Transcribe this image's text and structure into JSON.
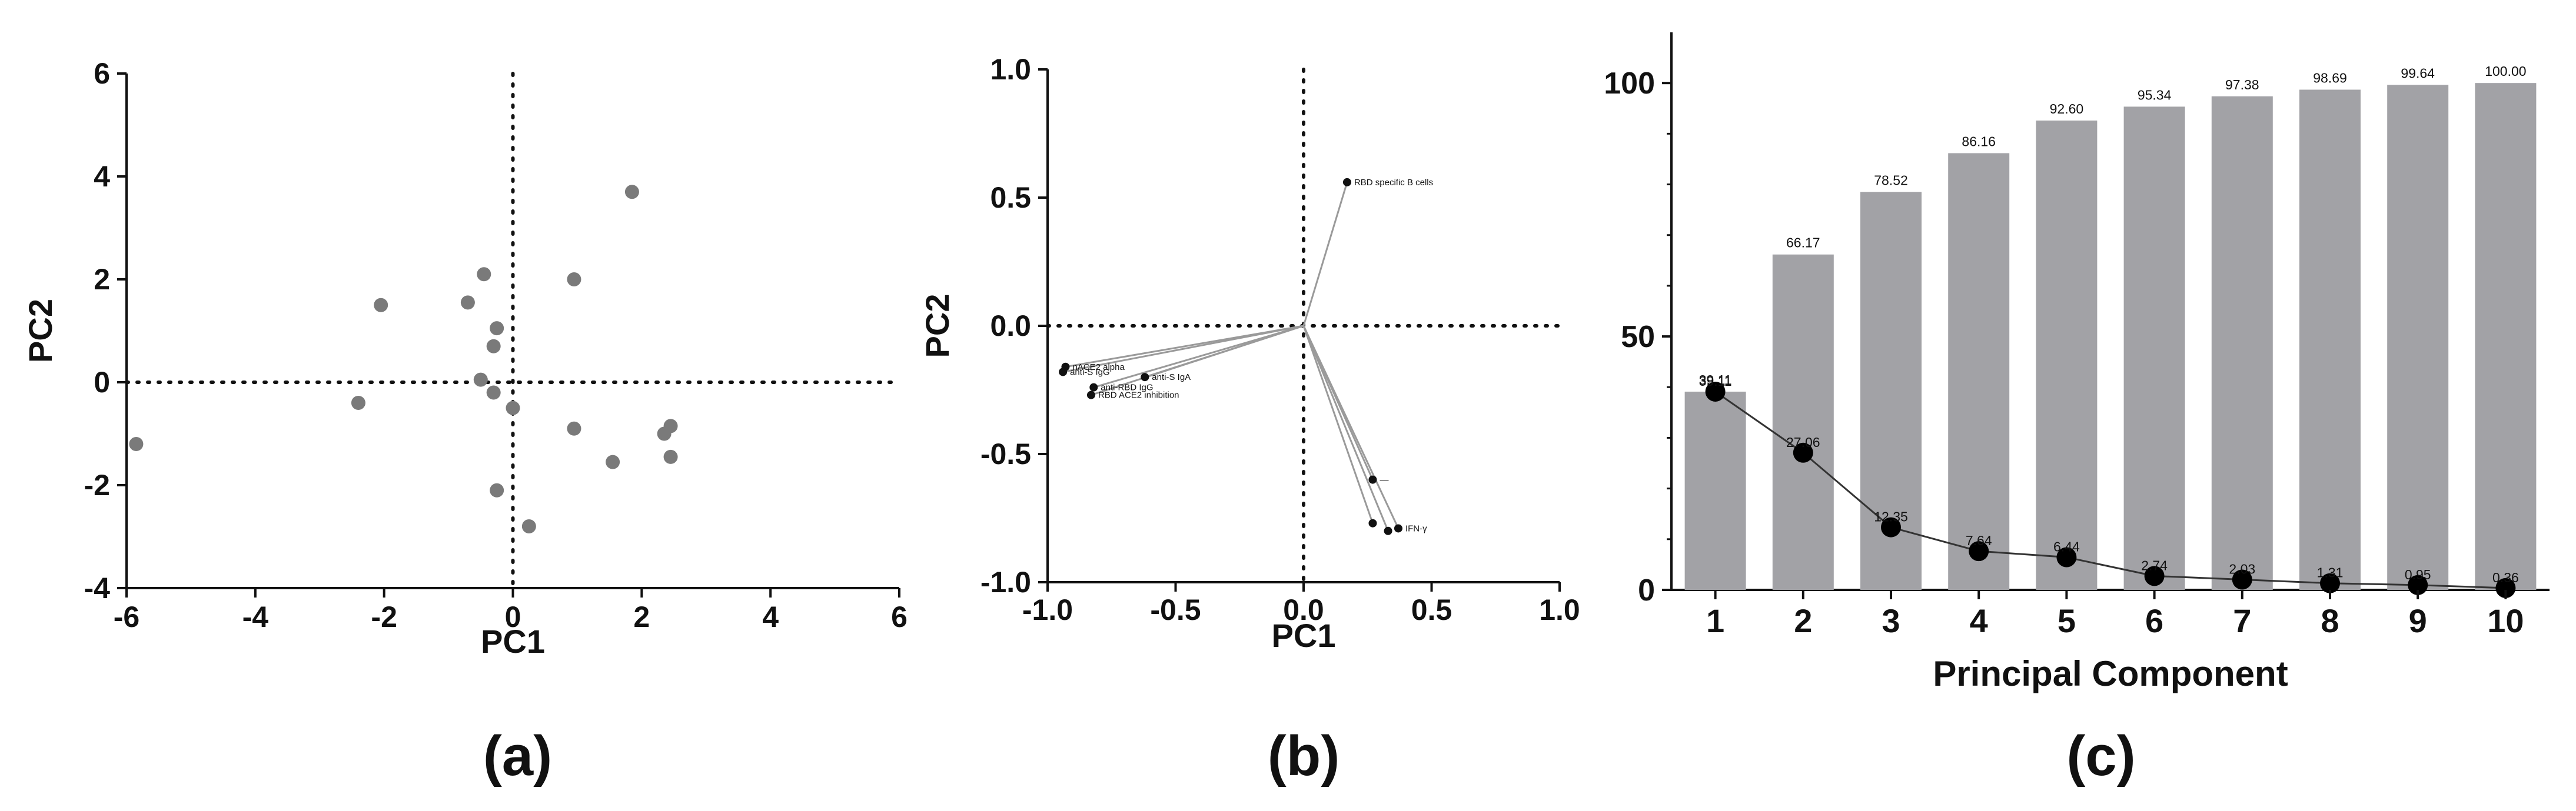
{
  "chart_data": [
    {
      "type": "scatter",
      "panel_label": "(a)",
      "xlabel": "PC1",
      "ylabel": "PC2",
      "xlim": [
        -6,
        6
      ],
      "ylim": [
        -4,
        6
      ],
      "xticks": [
        "-6",
        "-4",
        "-2",
        "0",
        "2",
        "4",
        "6"
      ],
      "yticks": [
        "-4",
        "-2",
        "0",
        "2",
        "4",
        "6"
      ],
      "reference_lines": "dotted at x=0 and y=0",
      "marker_color": "#7a7a7a",
      "points": [
        {
          "x": -5.85,
          "y": -1.2
        },
        {
          "x": -2.4,
          "y": -0.4
        },
        {
          "x": -2.05,
          "y": 1.5
        },
        {
          "x": -0.7,
          "y": 1.55
        },
        {
          "x": -0.45,
          "y": 2.1
        },
        {
          "x": -0.25,
          "y": 1.05
        },
        {
          "x": -0.3,
          "y": 0.7
        },
        {
          "x": -0.5,
          "y": 0.05
        },
        {
          "x": -0.3,
          "y": -0.2
        },
        {
          "x": -0.25,
          "y": -2.1
        },
        {
          "x": 0.0,
          "y": -0.5
        },
        {
          "x": 0.25,
          "y": -2.8
        },
        {
          "x": 0.95,
          "y": 2.0
        },
        {
          "x": 0.95,
          "y": -0.9
        },
        {
          "x": 1.85,
          "y": 3.7
        },
        {
          "x": 1.55,
          "y": -1.55
        },
        {
          "x": 2.35,
          "y": -1.0
        },
        {
          "x": 2.45,
          "y": -0.85
        },
        {
          "x": 2.45,
          "y": -1.45
        }
      ]
    },
    {
      "type": "scatter",
      "panel_label": "(b)",
      "xlabel": "PC1",
      "ylabel": "PC2",
      "xlim": [
        -1.0,
        1.0
      ],
      "ylim": [
        -1.0,
        1.0
      ],
      "xticks": [
        "-1.0",
        "-0.5",
        "0.0",
        "0.5",
        "1.0"
      ],
      "yticks": [
        "-1.0",
        "-0.5",
        "0.0",
        "0.5",
        "1.0"
      ],
      "reference_lines": "dotted at x=0 and y=0",
      "vectors_from_origin": true,
      "loadings": [
        {
          "label": "RBD specific B cells",
          "x": 0.17,
          "y": 0.56
        },
        {
          "label": "nACE2 alpha",
          "x": -0.93,
          "y": -0.16
        },
        {
          "label": "anti-S IgG",
          "x": -0.94,
          "y": -0.18
        },
        {
          "label": "anti-S IgA",
          "x": -0.62,
          "y": -0.2
        },
        {
          "label": "anti-RBD IgG",
          "x": -0.82,
          "y": -0.24
        },
        {
          "label": "RBD ACE2 inhibition",
          "x": -0.83,
          "y": -0.27
        },
        {
          "label": "—",
          "x": 0.27,
          "y": -0.6
        },
        {
          "label": "",
          "x": 0.27,
          "y": -0.77
        },
        {
          "label": "",
          "x": 0.33,
          "y": -0.8
        },
        {
          "label": "IFN-γ",
          "x": 0.37,
          "y": -0.79
        }
      ]
    },
    {
      "type": "bar",
      "panel_label": "(c)",
      "xlabel": "Principal Component",
      "ylabel": "",
      "categories": [
        "1",
        "2",
        "3",
        "4",
        "5",
        "6",
        "7",
        "8",
        "9",
        "10"
      ],
      "ylim": [
        0,
        110
      ],
      "yticks": [
        "0",
        "50",
        "100"
      ],
      "series": [
        {
          "kind": "bar",
          "values": [
            39.11,
            66.17,
            78.52,
            86.16,
            92.6,
            95.34,
            97.38,
            98.69,
            99.64,
            100.0
          ],
          "labels": [
            "39.11",
            "66.17",
            "78.52",
            "86.16",
            "92.60",
            "95.34",
            "97.38",
            "98.69",
            "99.64",
            "100.00"
          ]
        },
        {
          "kind": "line",
          "values": [
            39.11,
            27.06,
            12.35,
            7.64,
            6.44,
            2.74,
            2.03,
            1.31,
            0.95,
            0.36
          ],
          "labels": [
            "39.11",
            "27.06",
            "12.35",
            "7.64",
            "6.44",
            "2.74",
            "2.03",
            "1.31",
            "0.95",
            "0.36"
          ]
        }
      ],
      "colors": {
        "bar": "#a2a2a6",
        "line": "#333333",
        "marker": "#000000"
      }
    }
  ]
}
